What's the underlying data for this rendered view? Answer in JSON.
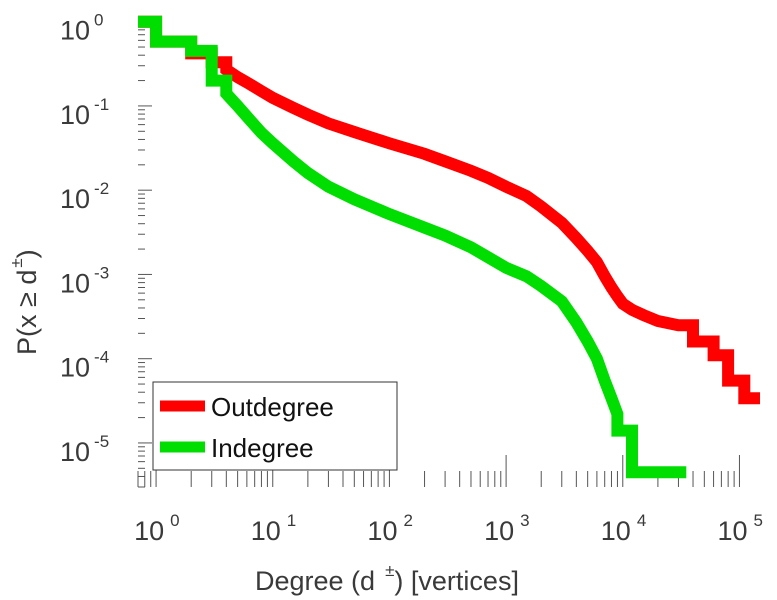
{
  "chart_data": {
    "type": "line",
    "subtype": "step-ccdf",
    "scale": {
      "x": "log",
      "y": "log"
    },
    "xlim": [
      0.7,
      150000
    ],
    "ylim": [
      3e-06,
      1.2
    ],
    "x_ticks": [
      {
        "base": "10",
        "exp": "0",
        "value": 1
      },
      {
        "base": "10",
        "exp": "1",
        "value": 10
      },
      {
        "base": "10",
        "exp": "2",
        "value": 100
      },
      {
        "base": "10",
        "exp": "3",
        "value": 1000
      },
      {
        "base": "10",
        "exp": "4",
        "value": 10000
      },
      {
        "base": "10",
        "exp": "5",
        "value": 100000
      }
    ],
    "y_ticks": [
      {
        "base": "10",
        "exp": "0",
        "value": 1
      },
      {
        "base": "10",
        "exp": "-1",
        "value": 0.1
      },
      {
        "base": "10",
        "exp": "-2",
        "value": 0.01
      },
      {
        "base": "10",
        "exp": "-3",
        "value": 0.001
      },
      {
        "base": "10",
        "exp": "-4",
        "value": 0.0001
      },
      {
        "base": "10",
        "exp": "-5",
        "value": 1e-05
      }
    ],
    "xlabel": {
      "main": "Degree (d",
      "sup": "±",
      "rest": ") [vertices]"
    },
    "ylabel": {
      "main": "P(x ≥ d",
      "sup": "±",
      "rest": ")"
    },
    "legend_position": "bottom-left",
    "series": [
      {
        "name": "Outdegree",
        "color": "#ff0000",
        "points": [
          [
            0.7,
            1.0
          ],
          [
            1,
            1.0
          ],
          [
            1,
            0.58
          ],
          [
            2,
            0.58
          ],
          [
            2,
            0.42
          ],
          [
            3,
            0.42
          ],
          [
            3,
            0.33
          ],
          [
            4,
            0.33
          ],
          [
            4,
            0.27
          ],
          [
            5,
            0.22
          ],
          [
            6,
            0.19
          ],
          [
            8,
            0.15
          ],
          [
            10,
            0.125
          ],
          [
            15,
            0.095
          ],
          [
            20,
            0.079
          ],
          [
            30,
            0.062
          ],
          [
            50,
            0.049
          ],
          [
            100,
            0.036
          ],
          [
            200,
            0.027
          ],
          [
            300,
            0.022
          ],
          [
            500,
            0.017
          ],
          [
            700,
            0.014
          ],
          [
            1000,
            0.011
          ],
          [
            1500,
            0.0085
          ],
          [
            2000,
            0.0064
          ],
          [
            3000,
            0.0041
          ],
          [
            4000,
            0.0027
          ],
          [
            5000,
            0.0019
          ],
          [
            6000,
            0.0014
          ],
          [
            7000,
            0.00095
          ],
          [
            8000,
            0.0007
          ],
          [
            9000,
            0.00055
          ],
          [
            10000,
            0.00045
          ],
          [
            12000,
            0.00038
          ],
          [
            15000,
            0.00033
          ],
          [
            20000,
            0.00028
          ],
          [
            30000,
            0.00025
          ],
          [
            40000,
            0.00025
          ],
          [
            40000,
            0.00016
          ],
          [
            60000,
            0.00016
          ],
          [
            60000,
            0.00011
          ],
          [
            80000,
            0.00011
          ],
          [
            80000,
            5.5e-05
          ],
          [
            110000,
            5.5e-05
          ],
          [
            110000,
            3.4e-05
          ],
          [
            150000,
            3.4e-05
          ]
        ]
      },
      {
        "name": "Indegree",
        "color": "#00dd00",
        "points": [
          [
            0.7,
            1.0
          ],
          [
            1,
            1.0
          ],
          [
            1,
            0.58
          ],
          [
            2,
            0.58
          ],
          [
            2,
            0.45
          ],
          [
            3,
            0.45
          ],
          [
            3,
            0.2
          ],
          [
            4,
            0.2
          ],
          [
            4,
            0.14
          ],
          [
            5,
            0.1
          ],
          [
            6,
            0.075
          ],
          [
            8,
            0.048
          ],
          [
            10,
            0.036
          ],
          [
            15,
            0.022
          ],
          [
            20,
            0.016
          ],
          [
            30,
            0.011
          ],
          [
            50,
            0.0078
          ],
          [
            100,
            0.0052
          ],
          [
            200,
            0.0036
          ],
          [
            300,
            0.0029
          ],
          [
            500,
            0.0021
          ],
          [
            700,
            0.0016
          ],
          [
            1000,
            0.0012
          ],
          [
            1500,
            0.00095
          ],
          [
            2000,
            0.00073
          ],
          [
            3000,
            0.00048
          ],
          [
            4000,
            0.00027
          ],
          [
            5000,
            0.00016
          ],
          [
            6000,
            0.0001
          ],
          [
            7000,
            5.5e-05
          ],
          [
            8000,
            3.4e-05
          ],
          [
            9000,
            2.2e-05
          ],
          [
            9000,
            1.4e-05
          ],
          [
            12000,
            1.4e-05
          ],
          [
            12000,
            4.5e-06
          ],
          [
            35000,
            4.5e-06
          ]
        ]
      }
    ]
  }
}
